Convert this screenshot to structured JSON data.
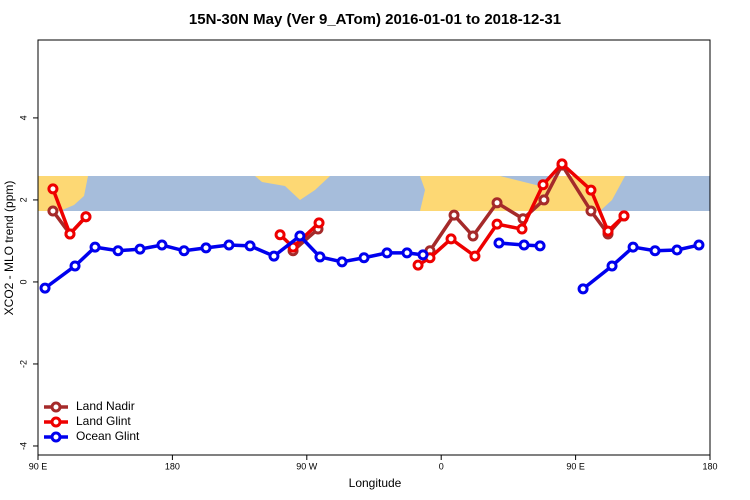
{
  "chart_data": {
    "type": "line",
    "title": "15N-30N May (Ver 9_ATom)   2016-01-01 to 2018-12-31",
    "x_label": "Longitude",
    "y_label": "XCO2 - MLO trend (ppm)",
    "xlim": [
      90,
      540
    ],
    "ylim": [
      -4.22,
      5.9
    ],
    "xticks": [
      {
        "value": 90,
        "label": "90 E"
      },
      180,
      {
        "value": 270,
        "label": "90 W"
      },
      {
        "value": 360,
        "label": "0"
      },
      {
        "value": 450,
        "label": "90 E"
      },
      {
        "value": 540,
        "label": "180"
      }
    ],
    "yticks": [
      -4,
      -2,
      0,
      2,
      4
    ],
    "legend": "bottom-left",
    "series": [
      {
        "name": "Land Nadir",
        "color": "#a52a2a",
        "x": [
          100,
          111.4,
          122.1,
          null,
          260.8,
          277.5,
          null,
          352.5,
          368.6,
          381.3,
          397.4,
          414.8,
          428.8,
          440.9,
          460.3,
          471.7,
          482.4
        ],
        "values": [
          1.73,
          1.17,
          1.59,
          null,
          0.76,
          1.29,
          null,
          0.76,
          1.63,
          1.12,
          1.93,
          1.54,
          2.0,
          2.85,
          1.73,
          1.17,
          1.61
        ]
      },
      {
        "name": "Land Glint",
        "color": "#ee0000",
        "x": [
          100,
          111.4,
          122.1,
          null,
          252.1,
          260.8,
          278.2,
          null,
          344.5,
          352.5,
          366.6,
          382.6,
          397.4,
          414.1,
          428.2,
          440.9,
          460.3,
          471.7,
          482.4
        ],
        "values": [
          2.27,
          1.17,
          1.59,
          null,
          1.15,
          0.85,
          1.44,
          null,
          0.41,
          0.59,
          1.05,
          0.63,
          1.41,
          1.29,
          2.37,
          2.88,
          2.24,
          1.24,
          1.61
        ]
      },
      {
        "name": "Ocean Glint",
        "color": "#0000ee",
        "x": [
          94.7,
          114.8,
          128.2,
          143.6,
          158.3,
          173,
          187.8,
          202.5,
          217.9,
          232,
          248,
          265.4,
          278.8,
          293.6,
          308.3,
          323.7,
          337.1,
          347.8,
          null,
          398.7,
          415.5,
          426.2,
          null,
          455,
          474.4,
          488.5,
          503.2,
          517.9,
          532.6
        ],
        "values": [
          -0.15,
          0.39,
          0.85,
          0.76,
          0.8,
          0.9,
          0.76,
          0.83,
          0.9,
          0.88,
          0.63,
          1.12,
          0.61,
          0.49,
          0.59,
          0.71,
          0.71,
          0.66,
          null,
          0.95,
          0.9,
          0.88,
          null,
          -0.17,
          0.39,
          0.85,
          0.76,
          0.78,
          0.9
        ]
      }
    ]
  }
}
